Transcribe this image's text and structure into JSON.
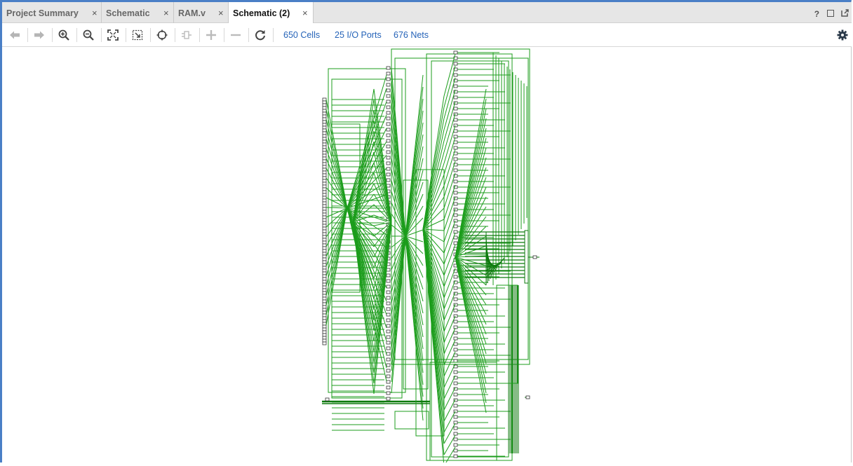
{
  "tabs": [
    {
      "label": "Project Summary",
      "active": false
    },
    {
      "label": "Schematic",
      "active": false
    },
    {
      "label": "RAM.v",
      "active": false
    },
    {
      "label": "Schematic (2)",
      "active": true
    }
  ],
  "close_glyph": "×",
  "window_controls": {
    "help_label": "?",
    "icons": [
      "help-icon",
      "maximize-icon",
      "float-icon"
    ]
  },
  "toolbar": {
    "icons": [
      "back-arrow-icon",
      "forward-arrow-icon",
      "zoom-in-icon",
      "zoom-out-icon",
      "zoom-fit-icon",
      "zoom-area-icon",
      "select-icon",
      "expand-cell-icon",
      "add-icon",
      "remove-icon",
      "refresh-icon",
      "settings-gear-icon"
    ],
    "stats": {
      "cells": "650 Cells",
      "io_ports": "25 I/O Ports",
      "nets": "676 Nets"
    }
  },
  "colors": {
    "wire": "#1c9d1c",
    "wire_dark": "#0c7a0c",
    "accent": "#4a7fc6",
    "stat_text": "#2563b8"
  }
}
